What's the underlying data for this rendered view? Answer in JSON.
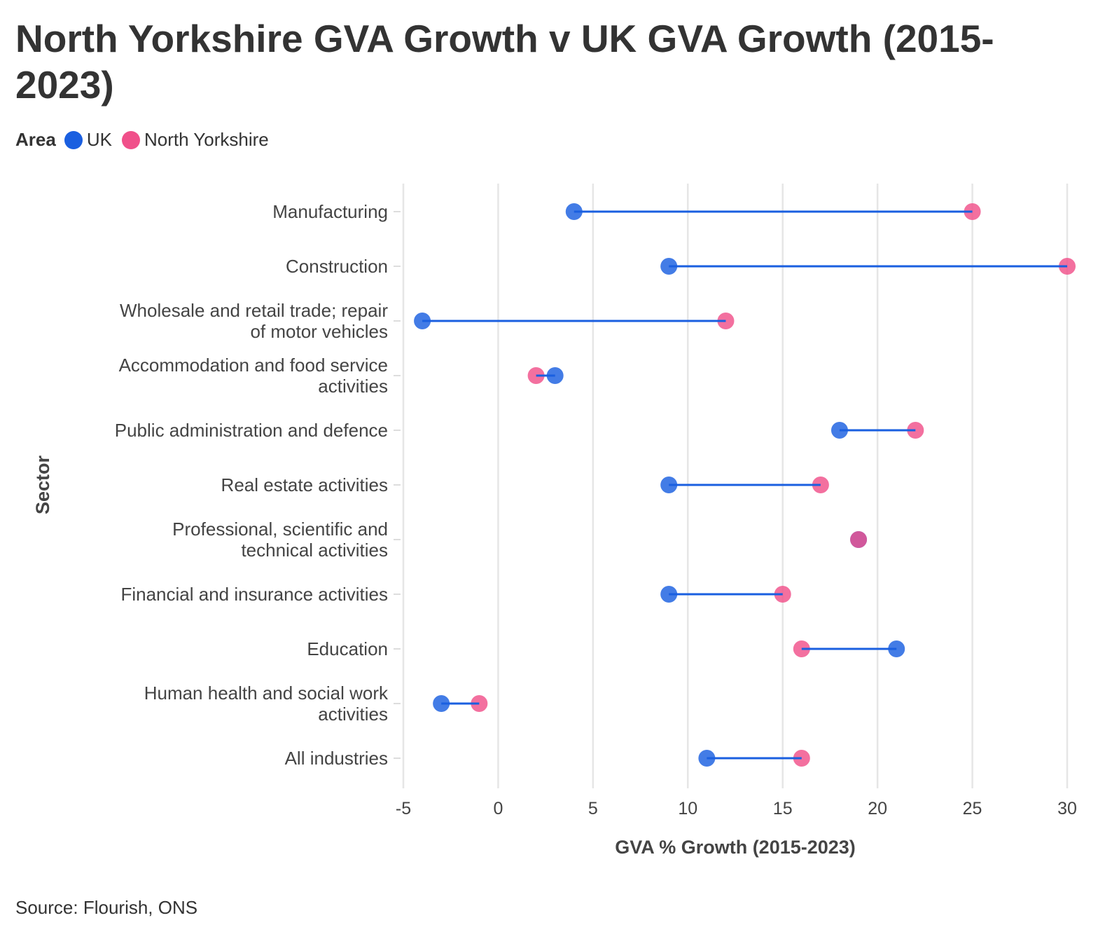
{
  "chart_data": {
    "type": "dot-range",
    "title": "North Yorkshire GVA Growth v UK GVA Growth (2015-2023)",
    "xlabel": "GVA % Growth (2015-2023)",
    "ylabel": "Sector",
    "xlim": [
      -5,
      30
    ],
    "xticks": [
      -5,
      0,
      5,
      10,
      15,
      20,
      25,
      30
    ],
    "grid": true,
    "legend_title": "Area",
    "legend_placement": "top-left",
    "categories": [
      "Manufacturing",
      "Construction",
      "Wholesale and retail trade; repair|of motor vehicles",
      "Accommodation and food service|activities",
      "Public administration and defence",
      "Real estate activities",
      "Professional, scientific and|technical activities",
      "Financial and insurance activities",
      "Education",
      "Human health and social work|activities",
      "All industries"
    ],
    "series": [
      {
        "name": "UK",
        "color": "#1a5fe0",
        "values": [
          4,
          9,
          -4,
          3,
          18,
          9,
          19,
          9,
          21,
          -3,
          11
        ]
      },
      {
        "name": "North Yorkshire",
        "color": "#f0508a",
        "values": [
          25,
          30,
          12,
          2,
          22,
          17,
          19,
          15,
          16,
          -1,
          16
        ]
      }
    ]
  },
  "source": "Source: Flourish, ONS"
}
